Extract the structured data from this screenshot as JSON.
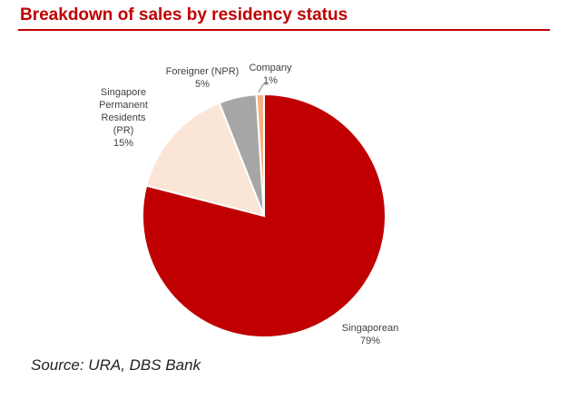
{
  "chart_data": {
    "type": "pie",
    "title": "Breakdown of sales by residency status",
    "categories": [
      "Singaporean",
      "Singapore Permanent Residents (PR)",
      "Foreigner (NPR)",
      "Company"
    ],
    "values": [
      79,
      15,
      5,
      1
    ],
    "value_labels": [
      "79%",
      "15%",
      "5%",
      "1%"
    ],
    "colors": [
      "#c00000",
      "#fbe5d6",
      "#a6a6a6",
      "#f4b183"
    ],
    "source": "Source: URA, DBS Bank"
  }
}
